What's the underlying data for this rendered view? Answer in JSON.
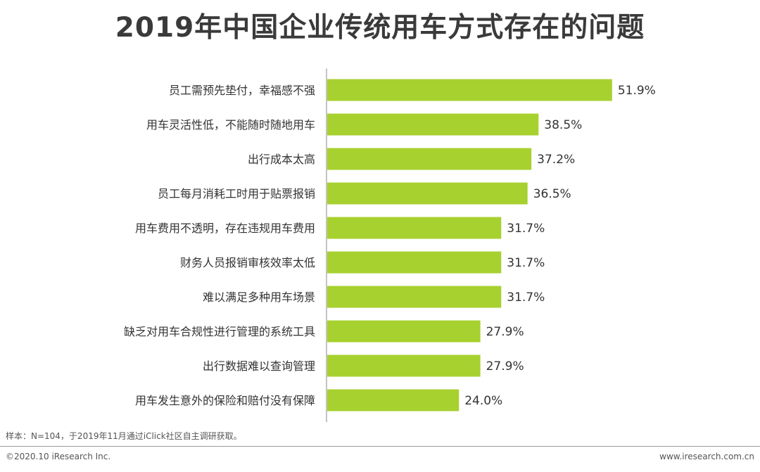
{
  "chart_data": {
    "type": "bar",
    "orientation": "horizontal",
    "title": "2019年中国企业传统用车方式存在的问题",
    "categories": [
      "员工需预先垫付，幸福感不强",
      "用车灵活性低，不能随时随地用车",
      "出行成本太高",
      "员工每月消耗工时用于贴票报销",
      "用车费用不透明，存在违规用车费用",
      "财务人员报销审核效率太低",
      "难以满足多种用车场景",
      "缺乏对用车合规性进行管理的系统工具",
      "出行数据难以查询管理",
      "用车发生意外的保险和赔付没有保障"
    ],
    "values": [
      51.9,
      38.5,
      37.2,
      36.5,
      31.7,
      31.7,
      31.7,
      27.9,
      27.9,
      24.0
    ],
    "value_labels": [
      "51.9%",
      "38.5%",
      "37.2%",
      "36.5%",
      "31.7%",
      "31.7%",
      "31.7%",
      "27.9%",
      "27.9%",
      "24.0%"
    ],
    "xlim": [
      0,
      60
    ],
    "bar_color": "#a7d12f",
    "axis_color": "#888888",
    "xlabel": "",
    "ylabel": ""
  },
  "footer": {
    "note": "样本：N=104，于2019年11月通过iClick社区自主调研获取。",
    "copyright": "©2020.10 iResearch Inc.",
    "website": "www.iresearch.com.cn"
  }
}
